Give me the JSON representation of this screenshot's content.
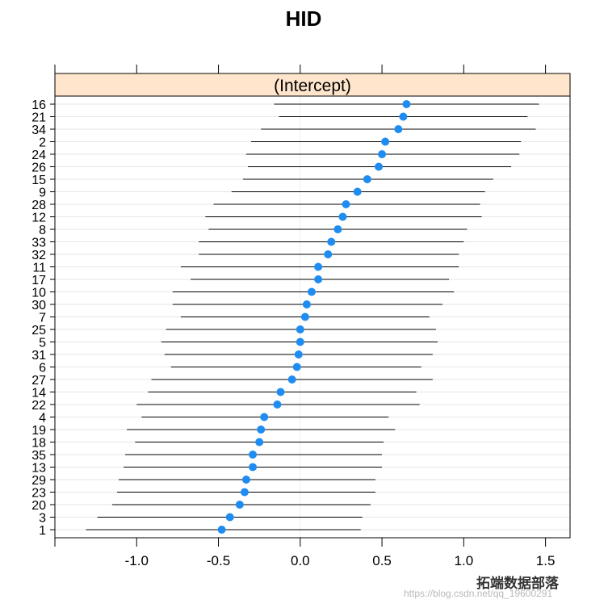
{
  "chart_data": {
    "type": "scatter",
    "subtype": "dotplot-with-intervals",
    "title": "HID",
    "panel_label": "(Intercept)",
    "xlim": [
      -1.5,
      1.65
    ],
    "x_ticks": [
      -1.0,
      -0.5,
      0.0,
      0.5,
      1.0,
      1.5
    ],
    "x_tick_labels": [
      "-1.0",
      "-0.5",
      "0.0",
      "0.5",
      "1.0",
      "1.5"
    ],
    "grid": true,
    "colors": {
      "point": "#1e8cf0",
      "interval": "#000000",
      "grid": "#e6e6e6",
      "strip_fill": "#ffe5cc",
      "frame": "#000000"
    },
    "categories": [
      "16",
      "21",
      "34",
      "2",
      "24",
      "26",
      "15",
      "9",
      "28",
      "12",
      "8",
      "33",
      "32",
      "11",
      "17",
      "10",
      "30",
      "7",
      "25",
      "5",
      "31",
      "6",
      "27",
      "14",
      "22",
      "4",
      "19",
      "18",
      "35",
      "13",
      "29",
      "23",
      "20",
      "3",
      "1"
    ],
    "estimates": [
      0.65,
      0.63,
      0.6,
      0.52,
      0.5,
      0.48,
      0.41,
      0.35,
      0.28,
      0.26,
      0.23,
      0.19,
      0.17,
      0.11,
      0.11,
      0.07,
      0.04,
      0.03,
      0.0,
      0.0,
      -0.01,
      -0.02,
      -0.05,
      -0.12,
      -0.14,
      -0.22,
      -0.24,
      -0.25,
      -0.29,
      -0.29,
      -0.33,
      -0.34,
      -0.37,
      -0.43,
      -0.48
    ],
    "lower": [
      -0.16,
      -0.13,
      -0.24,
      -0.3,
      -0.33,
      -0.32,
      -0.35,
      -0.42,
      -0.53,
      -0.58,
      -0.56,
      -0.62,
      -0.62,
      -0.73,
      -0.67,
      -0.78,
      -0.78,
      -0.73,
      -0.82,
      -0.85,
      -0.83,
      -0.79,
      -0.91,
      -0.93,
      -1.0,
      -0.97,
      -1.06,
      -1.01,
      -1.07,
      -1.08,
      -1.11,
      -1.12,
      -1.15,
      -1.24,
      -1.31
    ],
    "upper": [
      1.46,
      1.39,
      1.44,
      1.35,
      1.34,
      1.29,
      1.18,
      1.13,
      1.1,
      1.11,
      1.02,
      1.0,
      0.97,
      0.97,
      0.91,
      0.94,
      0.87,
      0.79,
      0.83,
      0.84,
      0.81,
      0.74,
      0.81,
      0.71,
      0.73,
      0.54,
      0.58,
      0.51,
      0.5,
      0.5,
      0.46,
      0.46,
      0.43,
      0.38,
      0.37
    ]
  },
  "watermark": {
    "main": "拓端数据部落",
    "sub": "https://blog.csdn.net/qq_19600291"
  }
}
